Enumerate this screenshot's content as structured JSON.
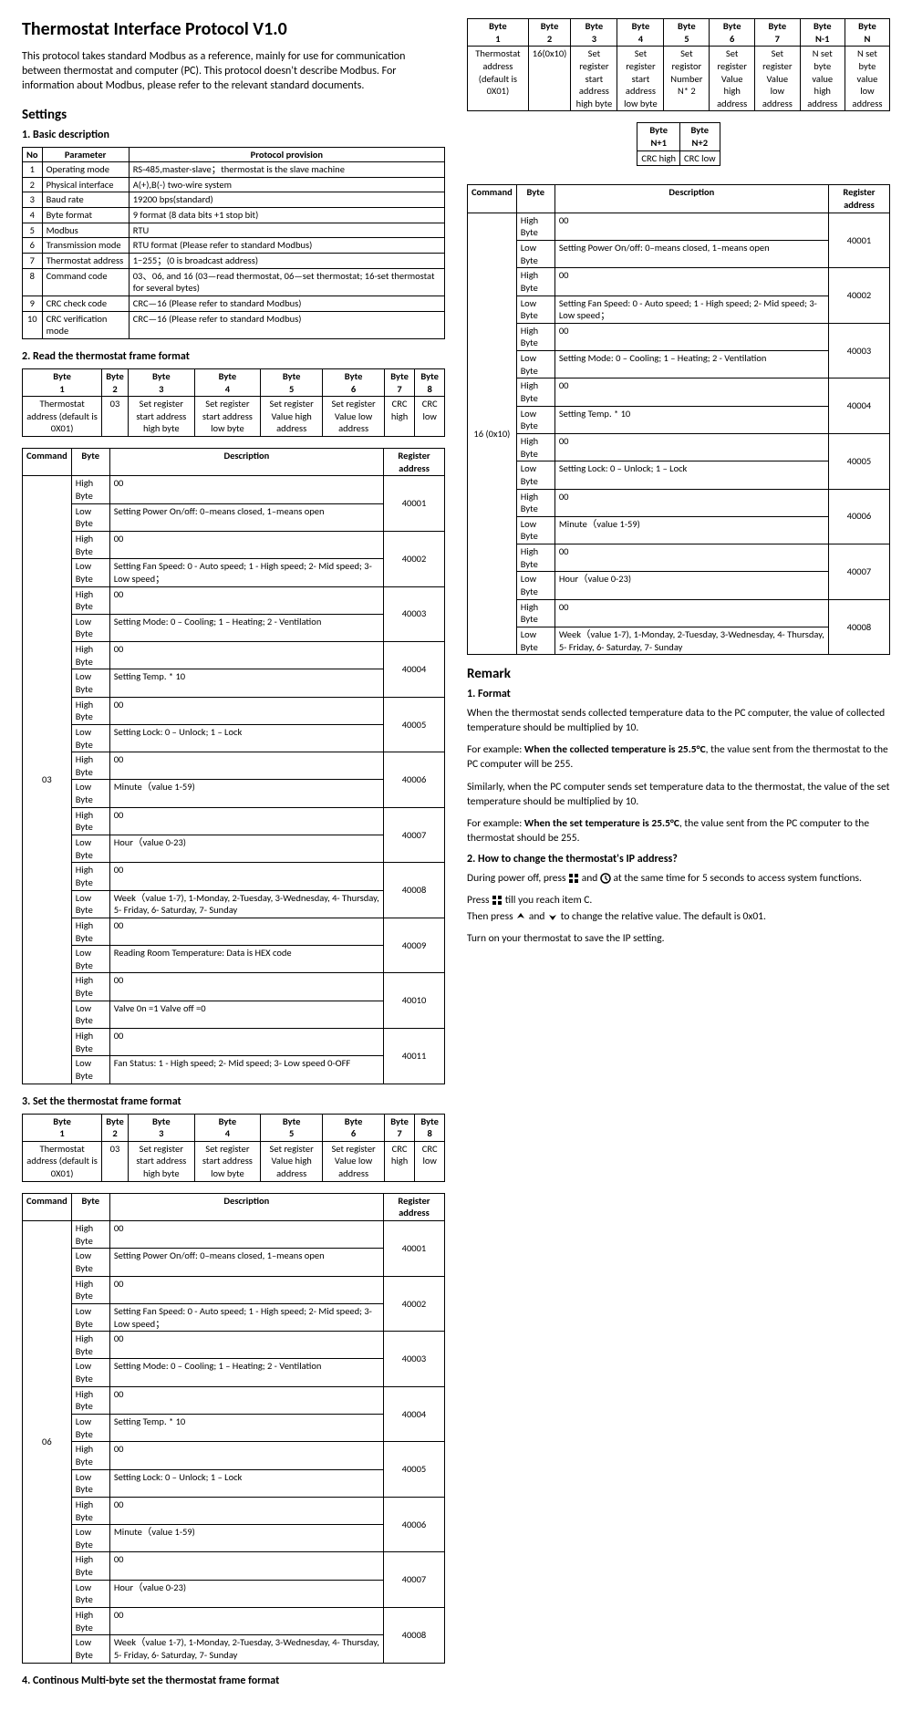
{
  "title": "Thermostat Interface Protocol V1.0",
  "intro": "This protocol takes standard Modbus as a reference, mainly for use for communication between thermostat and computer (PC). This protocol doesn't describe Modbus. For information about Modbus, please refer to the relevant standard documents.",
  "settings_heading": "Settings",
  "sec1_heading": "1. Basic description",
  "sec1_headers": [
    "No",
    "Parameter",
    "Protocol provision"
  ],
  "sec1_rows": [
    [
      "1",
      "Operating mode",
      "RS-485,master-slave；thermostat is the slave machine"
    ],
    [
      "2",
      "Physical interface",
      "A(+),B(-) two-wire system"
    ],
    [
      "3",
      "Baud rate",
      "19200 bps(standard)"
    ],
    [
      "4",
      "Byte format",
      "9 format (8 data bits +1 stop bit)"
    ],
    [
      "5",
      "Modbus",
      "RTU"
    ],
    [
      "6",
      "Transmission mode",
      "RTU format (Please refer to standard Modbus)"
    ],
    [
      "7",
      "Thermostat address",
      "1−255；(0 is broadcast address)"
    ],
    [
      "8",
      "Command code",
      "03、06, and 16 (03—read thermostat, 06—set thermostat; 16-set thermostat for several bytes)"
    ],
    [
      "9",
      "CRC check code",
      "CRC—16 (Please refer to standard Modbus)"
    ],
    [
      "10",
      "CRC verification mode",
      "CRC—16 (Please refer to standard Modbus)"
    ]
  ],
  "sec2_heading": "2. Read the thermostat frame format",
  "frame_headers8": [
    "Byte 1",
    "Byte 2",
    "Byte 3",
    "Byte 4",
    "Byte 5",
    "Byte 6",
    "Byte 7",
    "Byte 8"
  ],
  "frame2_row": [
    "Thermostat address (default is 0X01)",
    "03",
    "Set register start address high byte",
    "Set register start address low byte",
    "Set register Value high address",
    "Set register Value low address",
    "CRC high",
    "CRC low"
  ],
  "cmd_headers": [
    "Command",
    "Byte",
    "Description",
    "Register address"
  ],
  "cmd03_cmd": "03",
  "cmd03_rows": [
    {
      "byte": "High Byte",
      "desc": "00",
      "addr": "40001",
      "span": 2
    },
    {
      "byte": "Low Byte",
      "desc": "Setting Power On/off: 0–means closed, 1–means open"
    },
    {
      "byte": "High Byte",
      "desc": "00",
      "addr": "40002",
      "span": 2
    },
    {
      "byte": "Low Byte",
      "desc": "Setting Fan Speed: 0 - Auto speed; 1 - High speed; 2- Mid speed; 3-Low speed；"
    },
    {
      "byte": "High Byte",
      "desc": "00",
      "addr": "40003",
      "span": 2
    },
    {
      "byte": "Low Byte",
      "desc": "Setting Mode: 0 – Cooling; 1 – Heating; 2 - Ventilation"
    },
    {
      "byte": "High Byte",
      "desc": "00",
      "addr": "40004",
      "span": 2
    },
    {
      "byte": "Low Byte",
      "desc": "Setting Temp. * 10"
    },
    {
      "byte": "High Byte",
      "desc": "00",
      "addr": "40005",
      "span": 2
    },
    {
      "byte": "Low Byte",
      "desc": "Setting Lock:  0 – Unlock; 1 – Lock"
    },
    {
      "byte": "High Byte",
      "desc": "00",
      "addr": "40006",
      "span": 2
    },
    {
      "byte": "Low Byte",
      "desc": "Minute（value  1-59)"
    },
    {
      "byte": "High Byte",
      "desc": "00",
      "addr": "40007",
      "span": 2
    },
    {
      "byte": "Low Byte",
      "desc": "Hour（value  0-23)"
    },
    {
      "byte": "High Byte",
      "desc": "00",
      "addr": "40008",
      "span": 2
    },
    {
      "byte": "Low Byte",
      "desc": "Week（value  1-7), 1-Monday, 2-Tuesday, 3-Wednesday, 4- Thursday, 5- Friday, 6- Saturday, 7- Sunday"
    },
    {
      "byte": "High Byte",
      "desc": "00",
      "addr": "40009",
      "span": 2
    },
    {
      "byte": "Low Byte",
      "desc": "Reading Room Temperature: Data is HEX code"
    },
    {
      "byte": "High Byte",
      "desc": "00",
      "addr": "40010",
      "span": 2
    },
    {
      "byte": "Low Byte",
      "desc": "Valve 0n =1  Valve off =0"
    },
    {
      "byte": "High Byte",
      "desc": "00",
      "addr": "40011",
      "span": 2
    },
    {
      "byte": "Low Byte",
      "desc": "Fan Status: 1 - High speed; 2- Mid speed; 3- Low speed 0-OFF"
    }
  ],
  "sec3_heading": "3. Set the thermostat frame format",
  "frame3_row": [
    "Thermostat address (default is 0X01)",
    "03",
    "Set register start address high byte",
    "Set register start address low byte",
    "Set register Value high address",
    "Set register Value low address",
    "CRC high",
    "CRC low"
  ],
  "cmd06_cmd": "06",
  "cmd06_rows": [
    {
      "byte": "High Byte",
      "desc": "00",
      "addr": "40001",
      "span": 2
    },
    {
      "byte": "Low Byte",
      "desc": "Setting Power On/off: 0–means closed, 1–means open"
    },
    {
      "byte": "High Byte",
      "desc": "00",
      "addr": "40002",
      "span": 2
    },
    {
      "byte": "Low Byte",
      "desc": "Setting Fan Speed: 0 - Auto speed; 1 - High speed; 2- Mid speed; 3-Low speed；"
    },
    {
      "byte": "High Byte",
      "desc": "00",
      "addr": "40003",
      "span": 2
    },
    {
      "byte": "Low Byte",
      "desc": "Setting Mode: 0 – Cooling; 1 – Heating; 2 - Ventilation"
    },
    {
      "byte": "High Byte",
      "desc": "00",
      "addr": "40004",
      "span": 2
    },
    {
      "byte": "Low Byte",
      "desc": "Setting Temp. * 10"
    },
    {
      "byte": "High Byte",
      "desc": "00",
      "addr": "40005",
      "span": 2
    },
    {
      "byte": "Low Byte",
      "desc": "Setting Lock:  0 – Unlock; 1 – Lock"
    },
    {
      "byte": "High Byte",
      "desc": "00",
      "addr": "40006",
      "span": 2
    },
    {
      "byte": "Low Byte",
      "desc": "Minute（value  1-59)"
    },
    {
      "byte": "High Byte",
      "desc": "00",
      "addr": "40007",
      "span": 2
    },
    {
      "byte": "Low Byte",
      "desc": "Hour（value  0-23)"
    },
    {
      "byte": "High Byte",
      "desc": "00",
      "addr": "40008",
      "span": 2
    },
    {
      "byte": "Low Byte",
      "desc": "Week（value  1-7), 1-Monday, 2-Tuesday, 3-Wednesday, 4- Thursday, 5- Friday, 6- Saturday, 7- Sunday"
    }
  ],
  "sec4_heading": "4. Continous Multi-byte  set the thermostat frame format",
  "frame9_headers": [
    "Byte 1",
    "Byte 2",
    "Byte 3",
    "Byte 4",
    "Byte 5",
    "Byte 6",
    "Byte 7",
    "Byte N-1",
    "Byte N"
  ],
  "frame9_row": [
    "Thermostat address (default is 0X01)",
    "16(0x10)",
    "Set register start address high byte",
    "Set register start address low byte",
    "Set registor Number N* 2",
    "Set register Value high address",
    "Set register Value low address",
    "N set byte value high address",
    "N set byte value low address"
  ],
  "frame_tail_headers": [
    "Byte N+1",
    "Byte N+2"
  ],
  "frame_tail_row": [
    "CRC high",
    "CRC low"
  ],
  "cmd16_cmd": "16 (0x10)",
  "cmd16_rows": [
    {
      "byte": "High Byte",
      "desc": "00",
      "addr": "40001",
      "span": 2
    },
    {
      "byte": "Low Byte",
      "desc": "Setting Power On/off: 0–means closed, 1–means open"
    },
    {
      "byte": "High Byte",
      "desc": "00",
      "addr": "40002",
      "span": 2
    },
    {
      "byte": "Low Byte",
      "desc": "Setting Fan Speed: 0 - Auto speed; 1 - High speed; 2- Mid speed; 3-Low speed；"
    },
    {
      "byte": "High Byte",
      "desc": "00",
      "addr": "40003",
      "span": 2
    },
    {
      "byte": "Low Byte",
      "desc": "Setting Mode: 0 – Cooling; 1 – Heating; 2 - Ventilation"
    },
    {
      "byte": "High Byte",
      "desc": "00",
      "addr": "40004",
      "span": 2
    },
    {
      "byte": "Low Byte",
      "desc": "Setting Temp. * 10"
    },
    {
      "byte": "High Byte",
      "desc": "00",
      "addr": "40005",
      "span": 2
    },
    {
      "byte": "Low Byte",
      "desc": "Setting Lock:  0 – Unlock; 1 – Lock"
    },
    {
      "byte": "High Byte",
      "desc": "00",
      "addr": "40006",
      "span": 2
    },
    {
      "byte": "Low Byte",
      "desc": "Minute（value  1-59)"
    },
    {
      "byte": "High Byte",
      "desc": "00",
      "addr": "40007",
      "span": 2
    },
    {
      "byte": "Low Byte",
      "desc": "Hour（value  0-23)"
    },
    {
      "byte": "High Byte",
      "desc": "00",
      "addr": "40008",
      "span": 2
    },
    {
      "byte": "Low Byte",
      "desc": "Week（value  1-7), 1-Monday, 2-Tuesday, 3-Wednesday, 4- Thursday, 5- Friday, 6- Saturday, 7- Sunday"
    }
  ],
  "remark_heading": "Remark",
  "remark_sec1": "1. Format",
  "remark_p1": "When the thermostat sends collected temperature data to the PC computer, the value of collected temperature should be multiplied by 10.",
  "remark_p2a": "For example: ",
  "remark_p2b": "When the collected temperature is 25.5°C",
  "remark_p2c": ", the value sent from the thermostat to the PC computer will be 255.",
  "remark_p3": "Similarly, when the PC computer sends set temperature data to the thermostat, the value of the set temperature should be multiplied by 10.",
  "remark_p4a": "For example: ",
  "remark_p4b": "When the set temperature is 25.5°C",
  "remark_p4c": ", the value sent from the PC computer to the thermostat should be 255.",
  "remark_sec2": "2. How to change the thermostat's IP address?",
  "remark_p5a": "During power off, press",
  "remark_p5b": " and ",
  "remark_p5c": "  at the same time for 5 seconds to access system functions.",
  "remark_p6a": "Press ",
  "remark_p6b": "  till  you reach item C.",
  "remark_p7a": "Then press  ",
  "remark_p7b": "  and  ",
  "remark_p7c": "  to change the relative value. The default is 0x01.",
  "remark_p8": "Turn on your thermostat to save the IP setting."
}
